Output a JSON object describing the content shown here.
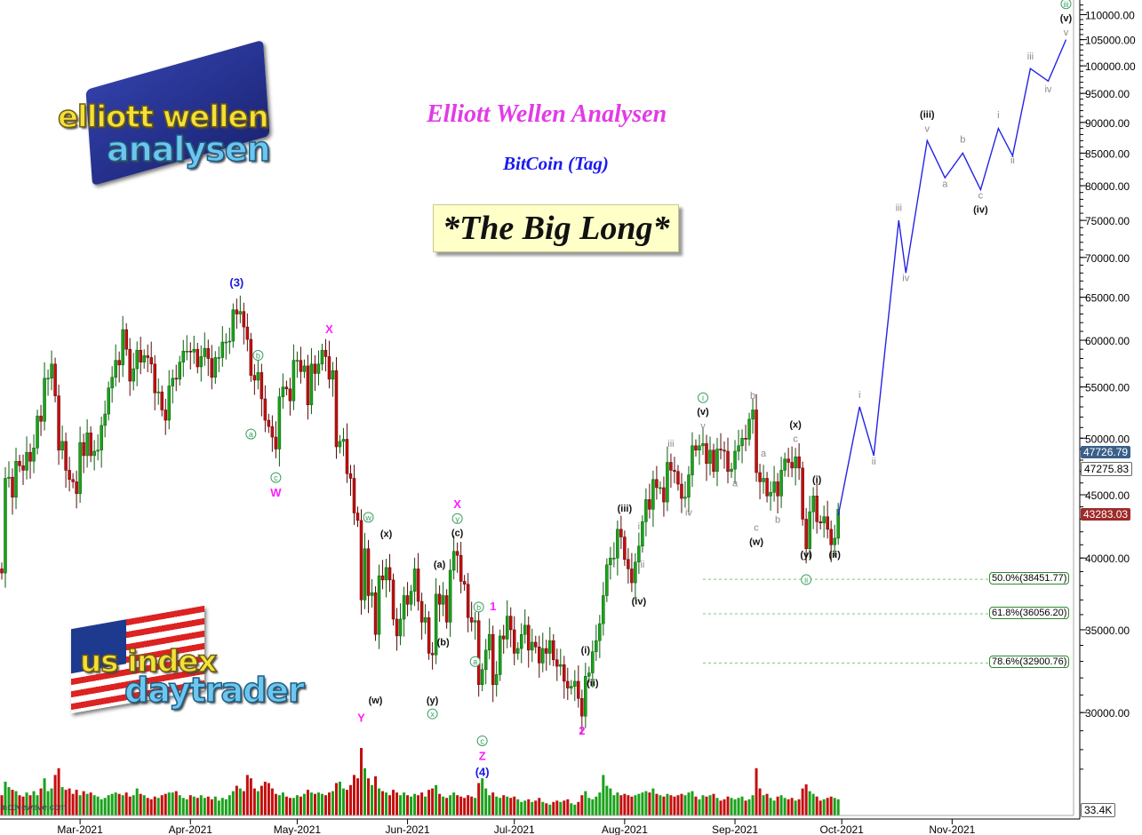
{
  "titles": {
    "main": "Elliott Wellen Analysen",
    "sub": "BitCoin (Tag)",
    "banner": "*The Big Long*"
  },
  "logos": {
    "top": {
      "line1": "elliott wellen",
      "line2": "analysen"
    },
    "bottom": {
      "line1": "us index",
      "line2": "daytrader"
    }
  },
  "watermark": "motivewave.com",
  "price_tags": {
    "hidden": "47726.79",
    "last": "47275.83",
    "red": "43283.03",
    "volume": "33.4K"
  },
  "colors": {
    "up": "#1aa21a",
    "down": "#c40e0e",
    "projection": "#2323e8",
    "magenta": "#ff1cff",
    "blue_label": "#1a1ae0",
    "gray_label": "#8a8a8a",
    "circled": "#3aa060",
    "fib": "#7cc47c"
  },
  "chart_data": {
    "type": "candlestick",
    "title": "BitCoin (Tag)",
    "y_scale": "log",
    "ylim": [
      26500,
      113000
    ],
    "y_ticks": [
      "30000.00",
      "35000.00",
      "40000.00",
      "45000.00",
      "50000.00",
      "55000.00",
      "60000.00",
      "65000.00",
      "70000.00",
      "75000.00",
      "80000.00",
      "85000.00",
      "90000.00",
      "95000.00",
      "100000.00",
      "105000.00",
      "110000.00"
    ],
    "x_ticks": [
      {
        "date": "2021-03-01",
        "label": "Mar-2021"
      },
      {
        "date": "2021-04-01",
        "label": "Apr-2021"
      },
      {
        "date": "2021-05-01",
        "label": "May-2021"
      },
      {
        "date": "2021-06-01",
        "label": "Jun-2021"
      },
      {
        "date": "2021-07-01",
        "label": "Jul-2021"
      },
      {
        "date": "2021-08-01",
        "label": "Aug-2021"
      },
      {
        "date": "2021-09-01",
        "label": "Sep-2021"
      },
      {
        "date": "2021-10-01",
        "label": "Oct-2021"
      },
      {
        "date": "2021-11-01",
        "label": "Nov-2021"
      }
    ],
    "start_date": "2021-02-07",
    "first_open": 39200,
    "closes": [
      38900,
      46400,
      46500,
      44800,
      47900,
      47500,
      47100,
      48700,
      47900,
      49100,
      52100,
      51600,
      55900,
      55900,
      57400,
      54100,
      48900,
      49700,
      47100,
      46300,
      46100,
      45100,
      49600,
      48400,
      50500,
      48400,
      48800,
      48900,
      51200,
      52300,
      54900,
      56000,
      57800,
      57300,
      61200,
      59000,
      55600,
      56900,
      58900,
      57600,
      58300,
      58100,
      57400,
      54400,
      54500,
      52700,
      51700,
      55100,
      55900,
      55800,
      57600,
      58800,
      58800,
      58700,
      59000,
      57100,
      58200,
      59100,
      58000,
      56000,
      58100,
      58100,
      59800,
      59800,
      59900,
      63500,
      63000,
      63300,
      61500,
      60100,
      56200,
      55700,
      56500,
      53800,
      51700,
      51100,
      50100,
      49000,
      54000,
      55000,
      54800,
      53600,
      57800,
      57800,
      56600,
      57200,
      53200,
      57400,
      56400,
      57400,
      58900,
      58200,
      55800,
      56700,
      49200,
      49700,
      49900,
      46800,
      46400,
      43500,
      42900,
      37000,
      40700,
      37300,
      37500,
      34700,
      38700,
      38400,
      39300,
      38400,
      35700,
      34600,
      35700,
      37300,
      36700,
      37600,
      39200,
      36900,
      35500,
      35800,
      33500,
      33400,
      37400,
      36700,
      37300,
      35500,
      39100,
      40500,
      40200,
      38300,
      38100,
      35800,
      35500,
      35600,
      31600,
      32500,
      33700,
      34700,
      31600,
      32200,
      34600,
      34400,
      35900,
      35000,
      33500,
      33800,
      34700,
      35300,
      33700,
      34200,
      33900,
      32900,
      33800,
      33500,
      34300,
      33100,
      32700,
      32800,
      31800,
      31400,
      31500,
      31800,
      30800,
      29800,
      32100,
      32300,
      33600,
      34300,
      35400,
      37300,
      39500,
      40000,
      40000,
      42200,
      41600,
      39900,
      39200,
      38200,
      39700,
      40900,
      42800,
      44600,
      43800,
      46300,
      45600,
      45600,
      44400,
      47800,
      47100,
      47000,
      45900,
      44700,
      44800,
      46700,
      49300,
      48900,
      49300,
      49500,
      47700,
      48900,
      47000,
      49000,
      48900,
      48800,
      47000,
      47200,
      48800,
      49300,
      50000,
      49900,
      51800,
      52700,
      46900,
      46100,
      46400,
      44900,
      45200,
      46100,
      44900,
      47100,
      48100,
      47800,
      47300,
      48300,
      47300,
      43000,
      40700,
      43600,
      44900,
      42800,
      42700,
      43200,
      42200,
      41000,
      41500,
      43800
    ],
    "volumes": [
      30,
      50,
      42,
      38,
      36,
      30,
      28,
      34,
      30,
      36,
      30,
      40,
      55,
      36,
      40,
      60,
      70,
      42,
      38,
      40,
      32,
      38,
      30,
      36,
      32,
      34,
      30,
      28,
      24,
      26,
      30,
      32,
      34,
      32,
      30,
      34,
      28,
      30,
      40,
      32,
      30,
      26,
      24,
      28,
      26,
      30,
      32,
      34,
      34,
      36,
      30,
      26,
      24,
      30,
      28,
      26,
      30,
      26,
      28,
      24,
      28,
      22,
      26,
      24,
      30,
      36,
      44,
      40,
      36,
      60,
      55,
      40,
      36,
      44,
      50,
      48,
      40,
      32,
      30,
      34,
      28,
      26,
      26,
      30,
      28,
      32,
      38,
      34,
      32,
      34,
      32,
      30,
      34,
      36,
      48,
      50,
      40,
      38,
      45,
      60,
      55,
      100,
      70,
      55,
      45,
      58,
      40,
      36,
      34,
      30,
      38,
      34,
      30,
      34,
      30,
      28,
      32,
      30,
      34,
      28,
      38,
      40,
      45,
      32,
      28,
      26,
      30,
      34,
      30,
      28,
      26,
      30,
      28,
      26,
      48,
      55,
      40,
      30,
      34,
      28,
      26,
      30,
      28,
      26,
      28,
      24,
      20,
      22,
      24,
      20,
      22,
      26,
      20,
      18,
      16,
      20,
      22,
      20,
      22,
      24,
      18,
      16,
      20,
      30,
      36,
      26,
      24,
      28,
      34,
      60,
      44,
      40,
      30,
      34,
      30,
      32,
      30,
      28,
      30,
      32,
      34,
      36,
      34,
      40,
      32,
      30,
      28,
      32,
      30,
      28,
      30,
      32,
      30,
      34,
      36,
      28,
      24,
      30,
      28,
      30,
      32,
      26,
      22,
      24,
      28,
      26,
      24,
      26,
      28,
      22,
      24,
      30,
      70,
      40,
      30,
      32,
      26,
      22,
      28,
      30,
      26,
      24,
      26,
      22,
      24,
      40,
      46,
      36,
      32,
      28,
      22,
      24,
      26,
      28,
      26,
      24
    ],
    "projection": [
      {
        "date": "2021-09-30",
        "price": 43300
      },
      {
        "date": "2021-10-06",
        "price": 53000
      },
      {
        "date": "2021-10-10",
        "price": 48400
      },
      {
        "date": "2021-10-17",
        "price": 75000
      },
      {
        "date": "2021-10-19",
        "price": 68000
      },
      {
        "date": "2021-10-25",
        "price": 87000
      },
      {
        "date": "2021-10-30",
        "price": 81200
      },
      {
        "date": "2021-11-04",
        "price": 85000
      },
      {
        "date": "2021-11-09",
        "price": 79400
      },
      {
        "date": "2021-11-14",
        "price": 89000
      },
      {
        "date": "2021-11-18",
        "price": 84600
      },
      {
        "date": "2021-11-23",
        "price": 99500
      },
      {
        "date": "2021-11-28",
        "price": 97200
      },
      {
        "date": "2021-12-03",
        "price": 105000
      }
    ],
    "fib_levels": [
      {
        "label": "50.0%(38451.77)",
        "price": 38451.77,
        "from": "2021-08-23"
      },
      {
        "label": "61.8%(36056.20)",
        "price": 36056.2,
        "from": "2021-08-23"
      },
      {
        "label": "78.6%(32900.76)",
        "price": 32900.76,
        "from": "2021-08-23"
      }
    ],
    "wave_labels": [
      {
        "t": "(3)",
        "date": "2021-04-14",
        "price": 66300,
        "style": "blue"
      },
      {
        "t": "X",
        "date": "2021-05-10",
        "price": 60800,
        "style": "magenta"
      },
      {
        "t": "b",
        "date": "2021-04-20",
        "price": 58000,
        "style": "circled"
      },
      {
        "t": "a",
        "date": "2021-04-18",
        "price": 50100,
        "style": "circled"
      },
      {
        "t": "c",
        "date": "2021-04-25",
        "price": 46200,
        "style": "circled"
      },
      {
        "t": "W",
        "date": "2021-04-25",
        "price": 45300,
        "style": "magenta"
      },
      {
        "t": "w",
        "date": "2021-05-21",
        "price": 42900,
        "style": "circled"
      },
      {
        "t": "(x)",
        "date": "2021-05-26",
        "price": 41600,
        "style": "black"
      },
      {
        "t": "(w)",
        "date": "2021-05-23",
        "price": 30500,
        "style": "black"
      },
      {
        "t": "Y",
        "date": "2021-05-19",
        "price": 29500,
        "style": "magenta"
      },
      {
        "t": "(a)",
        "date": "2021-06-10",
        "price": 39300,
        "style": "black"
      },
      {
        "t": "(b)",
        "date": "2021-06-11",
        "price": 34000,
        "style": "black"
      },
      {
        "t": "(y)",
        "date": "2021-06-08",
        "price": 30500,
        "style": "black"
      },
      {
        "t": "x",
        "date": "2021-06-08",
        "price": 29800,
        "style": "circled"
      },
      {
        "t": "X",
        "date": "2021-06-15",
        "price": 43900,
        "style": "magenta"
      },
      {
        "t": "y",
        "date": "2021-06-15",
        "price": 42800,
        "style": "circled"
      },
      {
        "t": "(c)",
        "date": "2021-06-15",
        "price": 42100,
        "style": "black"
      },
      {
        "t": "1",
        "date": "2021-06-25",
        "price": 36300,
        "style": "magenta"
      },
      {
        "t": "b",
        "date": "2021-06-21",
        "price": 36300,
        "style": "circled"
      },
      {
        "t": "a",
        "date": "2021-06-20",
        "price": 32800,
        "style": "circled"
      },
      {
        "t": "c",
        "date": "2021-06-22",
        "price": 28300,
        "style": "circled"
      },
      {
        "t": "Z",
        "date": "2021-06-22",
        "price": 27700,
        "style": "magenta"
      },
      {
        "t": "(4)",
        "date": "2021-06-22",
        "price": 27000,
        "style": "blue"
      },
      {
        "t": "2",
        "date": "2021-07-20",
        "price": 28800,
        "style": "magenta"
      },
      {
        "t": "(i)",
        "date": "2021-07-21",
        "price": 33500,
        "style": "black"
      },
      {
        "t": "(ii)",
        "date": "2021-07-23",
        "price": 31500,
        "style": "black"
      },
      {
        "t": "(iii)",
        "date": "2021-08-01",
        "price": 43600,
        "style": "black"
      },
      {
        "t": "i",
        "date": "2021-08-05",
        "price": 42200,
        "style": "gray"
      },
      {
        "t": "ii",
        "date": "2021-08-06",
        "price": 39300,
        "style": "gray"
      },
      {
        "t": "(iv)",
        "date": "2021-08-05",
        "price": 36700,
        "style": "black"
      },
      {
        "t": "iii",
        "date": "2021-08-14",
        "price": 49200,
        "style": "gray"
      },
      {
        "t": "iv",
        "date": "2021-08-19",
        "price": 43300,
        "style": "gray"
      },
      {
        "t": "v",
        "date": "2021-08-23",
        "price": 51500,
        "style": "gray"
      },
      {
        "t": "(v)",
        "date": "2021-08-23",
        "price": 52700,
        "style": "black"
      },
      {
        "t": "i",
        "date": "2021-08-23",
        "price": 53600,
        "style": "circled"
      },
      {
        "t": "b",
        "date": "2021-09-06",
        "price": 53800,
        "style": "gray"
      },
      {
        "t": "a",
        "date": "2021-09-09",
        "price": 48300,
        "style": "gray"
      },
      {
        "t": "a",
        "date": "2021-09-01",
        "price": 45700,
        "style": "gray"
      },
      {
        "t": "c",
        "date": "2021-09-07",
        "price": 42100,
        "style": "gray"
      },
      {
        "t": "(w)",
        "date": "2021-09-07",
        "price": 41100,
        "style": "black"
      },
      {
        "t": "b",
        "date": "2021-09-13",
        "price": 42700,
        "style": "gray"
      },
      {
        "t": "(x)",
        "date": "2021-09-18",
        "price": 51000,
        "style": "black"
      },
      {
        "t": "c",
        "date": "2021-09-18",
        "price": 49900,
        "style": "gray"
      },
      {
        "t": "(i)",
        "date": "2021-09-24",
        "price": 46000,
        "style": "black"
      },
      {
        "t": "(y)",
        "date": "2021-09-21",
        "price": 40000,
        "style": "black"
      },
      {
        "t": "ii",
        "date": "2021-09-21",
        "price": 38200,
        "style": "circled"
      },
      {
        "t": "(ii)",
        "date": "2021-09-29",
        "price": 40000,
        "style": "black"
      },
      {
        "t": "i",
        "date": "2021-10-06",
        "price": 53900,
        "style": "gray"
      },
      {
        "t": "ii",
        "date": "2021-10-10",
        "price": 47600,
        "style": "gray"
      },
      {
        "t": "iii",
        "date": "2021-10-17",
        "price": 76300,
        "style": "gray"
      },
      {
        "t": "iv",
        "date": "2021-10-19",
        "price": 67000,
        "style": "gray"
      },
      {
        "t": "(iii)",
        "date": "2021-10-25",
        "price": 90800,
        "style": "black"
      },
      {
        "t": "v",
        "date": "2021-10-25",
        "price": 88500,
        "style": "gray"
      },
      {
        "t": "a",
        "date": "2021-10-30",
        "price": 79800,
        "style": "gray"
      },
      {
        "t": "b",
        "date": "2021-11-04",
        "price": 86700,
        "style": "gray"
      },
      {
        "t": "c",
        "date": "2021-11-09",
        "price": 78100,
        "style": "gray"
      },
      {
        "t": "(iv)",
        "date": "2021-11-09",
        "price": 76300,
        "style": "black"
      },
      {
        "t": "i",
        "date": "2021-11-14",
        "price": 90700,
        "style": "gray"
      },
      {
        "t": "ii",
        "date": "2021-11-18",
        "price": 83400,
        "style": "gray"
      },
      {
        "t": "iii",
        "date": "2021-11-23",
        "price": 101200,
        "style": "gray"
      },
      {
        "t": "iv",
        "date": "2021-11-28",
        "price": 95200,
        "style": "gray"
      },
      {
        "t": "v",
        "date": "2021-12-03",
        "price": 107300,
        "style": "gray"
      },
      {
        "t": "(v)",
        "date": "2021-12-03",
        "price": 109400,
        "style": "black"
      },
      {
        "t": "iii",
        "date": "2021-12-03",
        "price": 111600,
        "style": "circled"
      }
    ]
  }
}
